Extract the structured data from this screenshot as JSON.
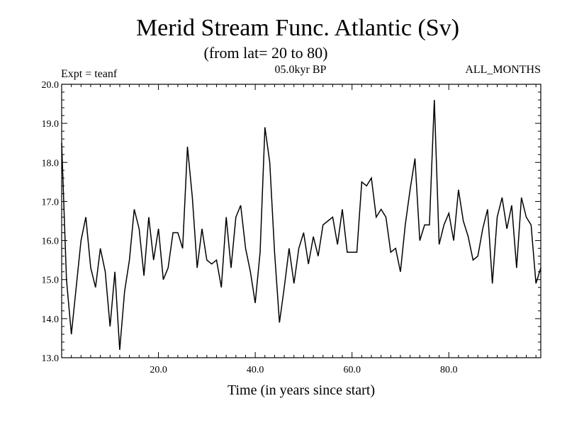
{
  "chart_data": {
    "type": "line",
    "title": "Merid Stream Func. Atlantic (Sv)",
    "subtitle": "(from lat= 20 to 80)",
    "expt_label": "Expt = teanf",
    "period_label": "05.0kyr BP",
    "months_label": "ALL_MONTHS",
    "xlabel": "Time (in years since start)",
    "ylabel": "",
    "xlim": [
      0,
      99
    ],
    "ylim": [
      13.0,
      20.0
    ],
    "x_ticks": [
      20,
      40,
      60,
      80
    ],
    "x_tick_labels": [
      "20.0",
      "40.0",
      "60.0",
      "80.0"
    ],
    "y_ticks": [
      13,
      14,
      15,
      16,
      17,
      18,
      19,
      20
    ],
    "y_tick_labels": [
      "13.0",
      "14.0",
      "15.0",
      "16.0",
      "17.0",
      "18.0",
      "19.0",
      "20.0"
    ],
    "x_start": 0,
    "x_step": 1,
    "values": [
      18.5,
      15.0,
      13.6,
      14.8,
      16.0,
      16.6,
      15.3,
      14.8,
      15.8,
      15.2,
      13.8,
      15.2,
      13.2,
      14.7,
      15.5,
      16.8,
      16.3,
      15.1,
      16.6,
      15.5,
      16.3,
      15.0,
      15.3,
      16.2,
      16.2,
      15.8,
      18.4,
      17.1,
      15.3,
      16.3,
      15.5,
      15.4,
      15.5,
      14.8,
      16.6,
      15.3,
      16.6,
      16.9,
      15.8,
      15.2,
      14.4,
      15.7,
      18.9,
      18.0,
      15.7,
      13.9,
      14.8,
      15.8,
      14.9,
      15.8,
      16.2,
      15.4,
      16.1,
      15.6,
      16.4,
      16.5,
      16.6,
      15.9,
      16.8,
      15.7,
      15.7,
      15.7,
      17.5,
      17.4,
      17.6,
      16.6,
      16.8,
      16.6,
      15.7,
      15.8,
      15.2,
      16.4,
      17.3,
      18.1,
      16.0,
      16.4,
      16.4,
      19.6,
      15.9,
      16.4,
      16.7,
      16.0,
      17.3,
      16.5,
      16.1,
      15.5,
      15.6,
      16.3,
      16.8,
      14.9,
      16.6,
      17.1,
      16.3,
      16.9,
      15.3,
      17.1,
      16.6,
      16.4,
      14.9,
      15.3
    ]
  }
}
